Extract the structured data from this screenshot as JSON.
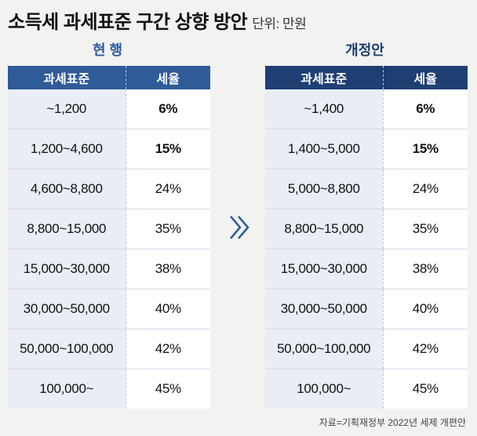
{
  "title": "소득세 과세표준 구간 상향 방안",
  "unit": "단위: 만원",
  "current": {
    "label": "현 행",
    "headers": [
      "과세표준",
      "세율"
    ],
    "rows": [
      {
        "range": "~1,200",
        "rate": "6%"
      },
      {
        "range": "1,200~4,600",
        "rate": "15%"
      },
      {
        "range": "4,600~8,800",
        "rate": "24%"
      },
      {
        "range": "8,800~15,000",
        "rate": "35%"
      },
      {
        "range": "15,000~30,000",
        "rate": "38%"
      },
      {
        "range": "30,000~50,000",
        "rate": "40%"
      },
      {
        "range": "50,000~100,000",
        "rate": "42%"
      },
      {
        "range": "100,000~",
        "rate": "45%"
      }
    ]
  },
  "proposed": {
    "label": "개정안",
    "headers": [
      "과세표준",
      "세율"
    ],
    "rows": [
      {
        "range": "~1,400",
        "rate": "6%"
      },
      {
        "range": "1,400~5,000",
        "rate": "15%"
      },
      {
        "range": "5,000~8,800",
        "rate": "24%"
      },
      {
        "range": "8,800~15,000",
        "rate": "35%"
      },
      {
        "range": "15,000~30,000",
        "rate": "38%"
      },
      {
        "range": "30,000~50,000",
        "rate": "40%"
      },
      {
        "range": "50,000~100,000",
        "rate": "42%"
      },
      {
        "range": "100,000~",
        "rate": "45%"
      }
    ]
  },
  "arrow_icon": "double-chevron-right-icon",
  "source": "자료=기획재정부 2022년 세제 개편안",
  "colors": {
    "current_header": "#2f5b98",
    "proposed_header": "#1f3f73",
    "range_cell": "#e9edf5"
  }
}
